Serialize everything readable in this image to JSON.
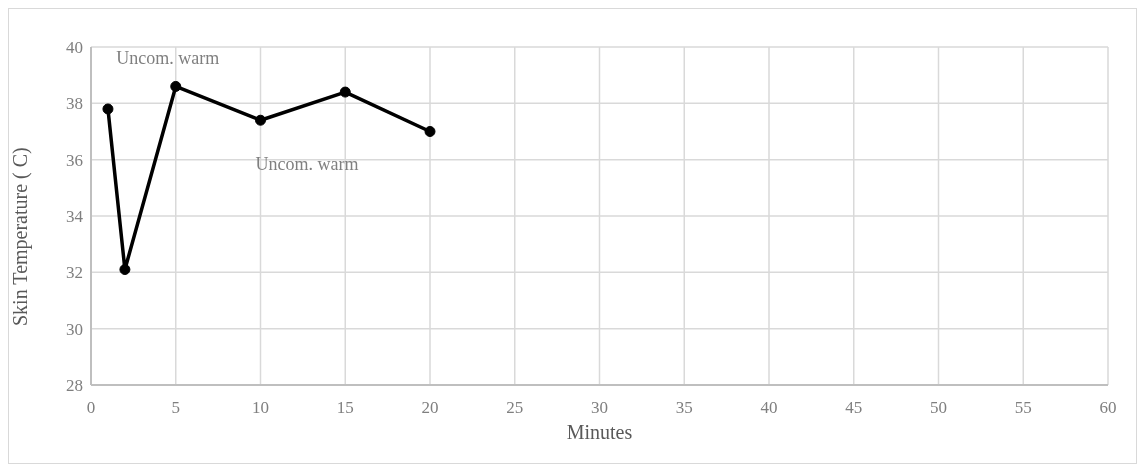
{
  "chart_data": {
    "type": "line",
    "xlabel": "Minutes",
    "ylabel": "Skin Temperature (   C)",
    "x": [
      1,
      2,
      5,
      10,
      15,
      20
    ],
    "series": [
      {
        "color": "#000000",
        "values": [
          37.8,
          32.1,
          38.6,
          37.4,
          38.4,
          37.0
        ]
      }
    ],
    "xlim": [
      0,
      60
    ],
    "xticks": [
      0,
      5,
      10,
      15,
      20,
      25,
      30,
      35,
      40,
      45,
      50,
      55,
      60
    ],
    "ylim": [
      28,
      40
    ],
    "yticks": [
      28,
      30,
      32,
      34,
      36,
      38,
      40
    ],
    "grid": true,
    "legend": false,
    "marker": "circle",
    "line_style": "solid",
    "annotations": [
      {
        "text": "Uncom. warm",
        "x": 5,
        "y": 38.6
      },
      {
        "text": "Uncom. warm",
        "x": 10,
        "y": 37.4
      }
    ]
  }
}
